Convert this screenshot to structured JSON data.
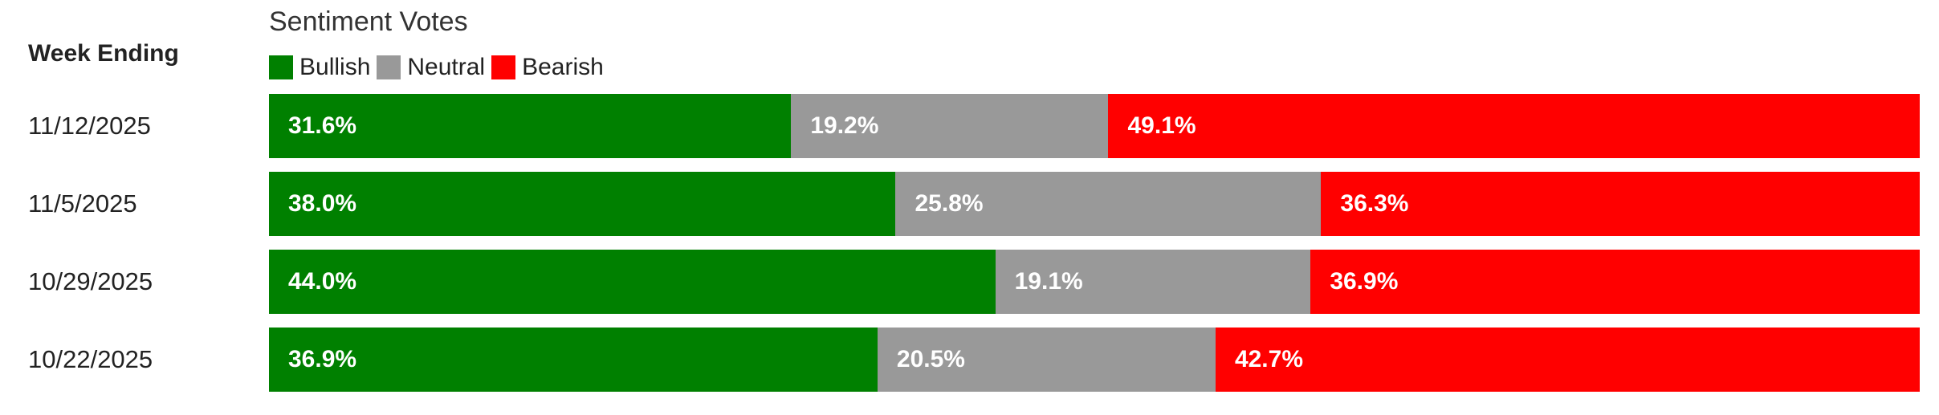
{
  "chart_data": {
    "type": "bar",
    "orientation": "horizontal",
    "stacked": true,
    "title": "Sentiment Votes",
    "row_header": "Week Ending",
    "categories": [
      "11/12/2025",
      "11/5/2025",
      "10/29/2025",
      "10/22/2025"
    ],
    "series": [
      {
        "name": "Bullish",
        "color": "#008000",
        "values": [
          31.6,
          38.0,
          44.0,
          36.9
        ],
        "labels": [
          "31.6%",
          "38.0%",
          "44.0%",
          "36.9%"
        ]
      },
      {
        "name": "Neutral",
        "color": "#999999",
        "values": [
          19.2,
          25.8,
          19.1,
          20.5
        ],
        "labels": [
          "19.2%",
          "25.8%",
          "19.1%",
          "20.5%"
        ]
      },
      {
        "name": "Bearish",
        "color": "#ff0000",
        "values": [
          49.1,
          36.3,
          36.9,
          42.7
        ],
        "labels": [
          "49.1%",
          "36.3%",
          "36.9%",
          "42.7%"
        ]
      }
    ],
    "legend_position": "top-left",
    "grid": false
  }
}
